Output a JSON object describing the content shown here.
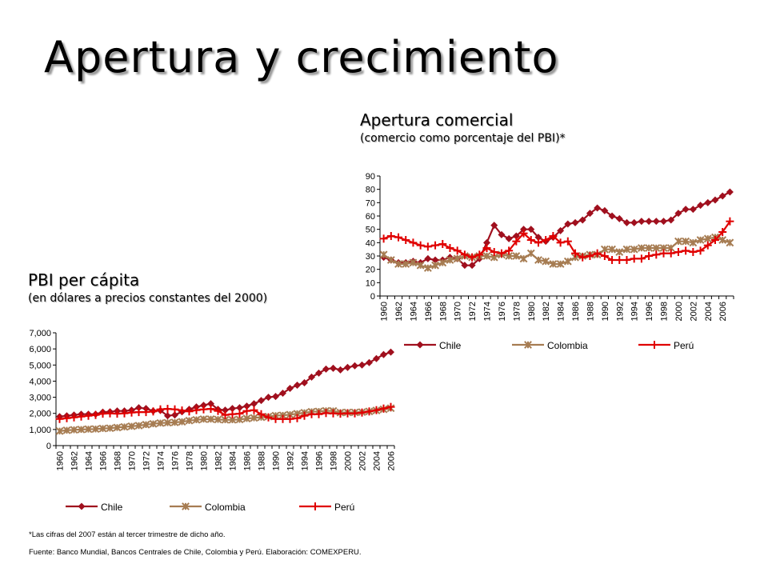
{
  "slide": {
    "title": "Apertura y crecimiento",
    "footnote": "*Las cifras del 2007 están al tercer trimestre de dicho año.",
    "source": "Fuente: Banco Mundial, Bancos Centrales de Chile, Colombia y Perú. Elaboración: COMEXPERU."
  },
  "colors": {
    "Chile": "#A0101E",
    "Colombia": "#A67C52",
    "Perú": "#E00000"
  },
  "chart_data": [
    {
      "type": "line",
      "title": "Apertura comercial",
      "subtitle": "(comercio como porcentaje del PBI)*",
      "ylim": [
        0,
        90
      ],
      "yticks": [
        "0",
        "10",
        "20",
        "30",
        "40",
        "50",
        "60",
        "70",
        "80",
        "90"
      ],
      "x": [
        1960,
        1961,
        1962,
        1963,
        1964,
        1965,
        1966,
        1967,
        1968,
        1969,
        1970,
        1971,
        1972,
        1973,
        1974,
        1975,
        1976,
        1977,
        1978,
        1979,
        1980,
        1981,
        1982,
        1983,
        1984,
        1985,
        1986,
        1987,
        1988,
        1989,
        1990,
        1991,
        1992,
        1993,
        1994,
        1995,
        1996,
        1997,
        1998,
        1999,
        2000,
        2001,
        2002,
        2003,
        2004,
        2005,
        2006,
        2007
      ],
      "xtick_labels": [
        "1960",
        "1962",
        "1964",
        "1966",
        "1968",
        "1970",
        "1972",
        "1974",
        "1976",
        "1978",
        "1980",
        "1982",
        "1984",
        "1986",
        "1988",
        "1990",
        "1992",
        "1994",
        "1996",
        "1998",
        "2000",
        "2002",
        "2004",
        "2006"
      ],
      "grid": false,
      "legend": "bottom",
      "series": [
        {
          "name": "Chile",
          "marker": "diamond",
          "values": [
            29,
            27,
            25,
            25,
            26,
            25,
            28,
            27,
            27,
            29,
            28,
            23,
            23,
            28,
            40,
            53,
            46,
            43,
            45,
            50,
            50,
            44,
            41,
            44,
            49,
            54,
            55,
            57,
            62,
            66,
            64,
            60,
            58,
            55,
            55,
            56,
            56,
            56,
            56,
            57,
            62,
            65,
            65,
            68,
            70,
            72,
            75,
            78
          ]
        },
        {
          "name": "Colombia",
          "marker": "asterisk",
          "values": [
            31,
            27,
            24,
            24,
            25,
            23,
            21,
            23,
            25,
            27,
            28,
            30,
            29,
            30,
            30,
            29,
            31,
            30,
            30,
            28,
            32,
            27,
            26,
            24,
            24,
            26,
            29,
            30,
            31,
            31,
            35,
            35,
            33,
            35,
            35,
            36,
            36,
            36,
            36,
            36,
            41,
            41,
            40,
            42,
            43,
            44,
            42,
            40
          ]
        },
        {
          "name": "Perú",
          "marker": "plus",
          "values": [
            43,
            45,
            44,
            42,
            40,
            38,
            37,
            38,
            39,
            36,
            34,
            31,
            29,
            31,
            36,
            33,
            32,
            34,
            41,
            47,
            42,
            40,
            42,
            45,
            40,
            41,
            32,
            29,
            30,
            32,
            30,
            27,
            27,
            27,
            28,
            28,
            30,
            31,
            32,
            32,
            33,
            34,
            33,
            34,
            38,
            42,
            48,
            56
          ]
        }
      ]
    },
    {
      "type": "line",
      "title": "PBI per cápita",
      "subtitle": "(en dólares a precios constantes del 2000)",
      "ylim": [
        0,
        7000
      ],
      "yticks": [
        "0",
        "1,000",
        "2,000",
        "3,000",
        "4,000",
        "5,000",
        "6,000",
        "7,000"
      ],
      "x": [
        1960,
        1961,
        1962,
        1963,
        1964,
        1965,
        1966,
        1967,
        1968,
        1969,
        1970,
        1971,
        1972,
        1973,
        1974,
        1975,
        1976,
        1977,
        1978,
        1979,
        1980,
        1981,
        1982,
        1983,
        1984,
        1985,
        1986,
        1987,
        1988,
        1989,
        1990,
        1991,
        1992,
        1993,
        1994,
        1995,
        1996,
        1997,
        1998,
        1999,
        2000,
        2001,
        2002,
        2003,
        2004,
        2005,
        2006
      ],
      "xtick_labels": [
        "1960",
        "1962",
        "1964",
        "1966",
        "1968",
        "1970",
        "1972",
        "1974",
        "1976",
        "1978",
        "1980",
        "1982",
        "1984",
        "1986",
        "1988",
        "1990",
        "1992",
        "1994",
        "1996",
        "1998",
        "2000",
        "2002",
        "2004",
        "2006"
      ],
      "grid": false,
      "legend": "bottom",
      "series": [
        {
          "name": "Chile",
          "marker": "diamond",
          "values": [
            1800,
            1850,
            1900,
            1950,
            1950,
            1950,
            2080,
            2100,
            2150,
            2150,
            2200,
            2350,
            2300,
            2150,
            2180,
            1850,
            1900,
            2100,
            2250,
            2400,
            2500,
            2600,
            2250,
            2200,
            2300,
            2350,
            2450,
            2600,
            2800,
            3000,
            3050,
            3250,
            3550,
            3750,
            3900,
            4250,
            4500,
            4750,
            4800,
            4700,
            4850,
            4950,
            5000,
            5150,
            5400,
            5650,
            5800
          ]
        },
        {
          "name": "Colombia",
          "marker": "asterisk",
          "values": [
            900,
            950,
            980,
            1000,
            1020,
            1030,
            1060,
            1080,
            1120,
            1160,
            1200,
            1240,
            1300,
            1350,
            1400,
            1420,
            1440,
            1480,
            1550,
            1600,
            1640,
            1640,
            1620,
            1600,
            1600,
            1620,
            1680,
            1720,
            1760,
            1800,
            1860,
            1880,
            1920,
            1980,
            2040,
            2100,
            2120,
            2160,
            2150,
            2050,
            2060,
            2060,
            2080,
            2120,
            2180,
            2250,
            2320
          ]
        },
        {
          "name": "Perú",
          "marker": "plus",
          "values": [
            1650,
            1700,
            1750,
            1800,
            1850,
            1900,
            1980,
            2000,
            1980,
            2000,
            2050,
            2080,
            2080,
            2120,
            2250,
            2280,
            2250,
            2180,
            2120,
            2200,
            2250,
            2280,
            2150,
            1900,
            1950,
            1980,
            2150,
            2200,
            1950,
            1750,
            1650,
            1650,
            1650,
            1700,
            1850,
            1950,
            1950,
            2020,
            2000,
            1980,
            2000,
            2000,
            2050,
            2120,
            2200,
            2300,
            2400
          ]
        }
      ]
    }
  ]
}
